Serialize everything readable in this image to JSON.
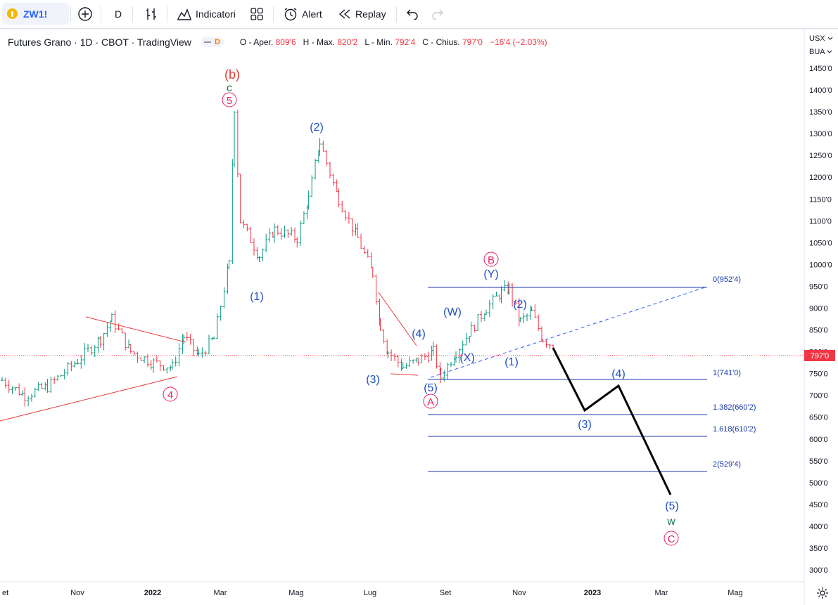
{
  "toolbar": {
    "symbol": "ZW1!",
    "interval": "D",
    "indicators_label": "Indicatori",
    "alert_label": "Alert",
    "replay_label": "Replay"
  },
  "legend": {
    "title": "Futures Grano · 1D · CBOT · TradingView",
    "badge": "D",
    "o_label": "O - Aper.",
    "o_value": "809'6",
    "h_label": "H - Max.",
    "h_value": "820'2",
    "l_label": "L - Min.",
    "l_value": "792'4",
    "c_label": "C - Chius.",
    "c_value": "797'0",
    "change": "−16'4 (−2.03%)"
  },
  "price_scale": {
    "currency": "USX",
    "unit": "BUA",
    "ticks": [
      "1450'0",
      "1400'0",
      "1350'0",
      "1300'0",
      "1250'0",
      "1200'0",
      "1150'0",
      "1100'0",
      "1050'0",
      "1000'0",
      "950'0",
      "900'0",
      "850'0",
      "800'0",
      "750'0",
      "700'0",
      "650'0",
      "600'0",
      "550'0",
      "500'0",
      "450'0",
      "400'0",
      "350'0",
      "300'0"
    ],
    "last_price": "797'0"
  },
  "time_scale": {
    "labels": [
      "et",
      "Nov",
      "2022",
      "Mar",
      "Mag",
      "Lug",
      "Set",
      "Nov",
      "2023",
      "Mar",
      "Mag"
    ]
  },
  "fib": {
    "levels": [
      "0(952'4)",
      "1(741'0)",
      "1.382(660'2)",
      "1.618(610'2)",
      "2(529'4)"
    ]
  },
  "waves": {
    "b_paren": "(b)",
    "c_small": "c",
    "five_circle_top": "5",
    "four_circle": "4",
    "w1": "(1)",
    "w2": "(2)",
    "w3": "(3)",
    "w4": "(4)",
    "w5": "(5)",
    "A_circle": "A",
    "B_circle": "B",
    "Y": "(Y)",
    "W": "(W)",
    "X": "(X)",
    "n1": "(1)",
    "n2": "(2)",
    "p3": "(3)",
    "p4": "(4)",
    "p5": "(5)",
    "w_small": "w",
    "C_circle": "C"
  },
  "colors": {
    "wave_blue": "#1e4fc2",
    "wave_red": "#e91e63",
    "wave_green": "#1b7a4b",
    "trend_red": "#e53935",
    "fib_line": "#1a3aa8",
    "projection": "#000000"
  },
  "icons": [
    "add-circle-icon",
    "candles-icon",
    "indicators-icon",
    "layouts-icon",
    "alert-clock-icon",
    "replay-icon",
    "undo-icon",
    "redo-icon",
    "gear-icon"
  ],
  "chart_data": {
    "type": "ohlc",
    "symbol": "ZW1!",
    "title": "Futures Grano · 1D · CBOT · TradingView",
    "ylim": [
      270,
      1480
    ],
    "x": [
      "2021-09",
      "2021-11",
      "2022-01",
      "2022-03",
      "2022-05",
      "2022-07",
      "2022-09",
      "2022-11",
      "2023-01",
      "2023-03",
      "2023-05"
    ],
    "close_path": [
      [
        0,
        735
      ],
      [
        0.3,
        700
      ],
      [
        0.6,
        720
      ],
      [
        1.0,
        780
      ],
      [
        1.3,
        830
      ],
      [
        1.45,
        875
      ],
      [
        1.7,
        800
      ],
      [
        2.0,
        775
      ],
      [
        2.25,
        765
      ],
      [
        2.4,
        835
      ],
      [
        2.6,
        790
      ],
      [
        2.8,
        830
      ],
      [
        3.0,
        1000
      ],
      [
        3.07,
        1360
      ],
      [
        3.15,
        1100
      ],
      [
        3.4,
        1020
      ],
      [
        3.6,
        1080
      ],
      [
        3.9,
        1060
      ],
      [
        4.05,
        1150
      ],
      [
        4.2,
        1280
      ],
      [
        4.45,
        1150
      ],
      [
        4.7,
        1060
      ],
      [
        4.9,
        980
      ],
      [
        5.0,
        860
      ],
      [
        5.1,
        800
      ],
      [
        5.3,
        765
      ],
      [
        5.5,
        780
      ],
      [
        5.7,
        800
      ],
      [
        5.8,
        742
      ],
      [
        6.0,
        800
      ],
      [
        6.2,
        850
      ],
      [
        6.4,
        900
      ],
      [
        6.6,
        935
      ],
      [
        6.7,
        945
      ],
      [
        6.85,
        870
      ],
      [
        7.0,
        890
      ],
      [
        7.15,
        830
      ],
      [
        7.4,
        800
      ],
      [
        7.5,
        797
      ]
    ],
    "projection_path": [
      [
        7.5,
        808
      ],
      [
        7.85,
        700
      ],
      [
        8.3,
        725
      ],
      [
        9.1,
        475
      ]
    ],
    "trendlines": [
      {
        "from": [
          "2021-10",
          875
        ],
        "to": [
          "2022-01",
          827
        ]
      },
      {
        "from": [
          "2021-09",
          645
        ],
        "to": [
          "2022-01",
          745
        ]
      },
      {
        "from": [
          "2022-07",
          938
        ],
        "to": [
          "2022-08",
          822
        ]
      }
    ],
    "fib_levels": [
      952.4,
      741,
      660.2,
      610.2,
      529.4
    ],
    "last": 797
  }
}
